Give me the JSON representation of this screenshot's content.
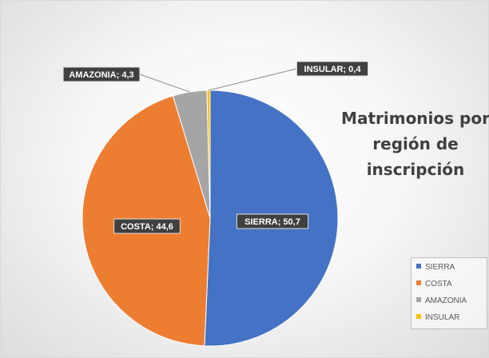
{
  "chart_data": {
    "type": "pie",
    "title": "Matrimonios por región de inscripción",
    "title_lines": [
      "Matrimonios por",
      "región de",
      "inscripción"
    ],
    "slices": [
      {
        "label": "SIERRA",
        "value": 50.7,
        "data_label": "SIERRA; 50,7",
        "color": "#4472c4"
      },
      {
        "label": "COSTA",
        "value": 44.6,
        "data_label": "COSTA; 44,6",
        "color": "#ed7d31"
      },
      {
        "label": "AMAZONIA",
        "value": 4.3,
        "data_label": "AMAZONIA; 4,3",
        "color": "#a5a5a5"
      },
      {
        "label": "INSULAR",
        "value": 0.4,
        "data_label": "INSULAR; 0,4",
        "color": "#ffc000"
      }
    ],
    "legend_position": "bottom-right",
    "data_label_style": "dark callout boxes"
  }
}
